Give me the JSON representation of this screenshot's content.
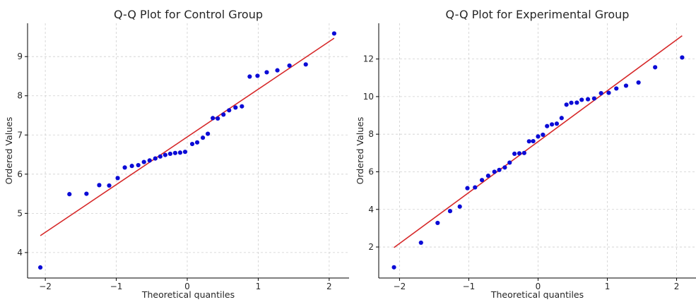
{
  "colors": {
    "points": "#0b0bd6",
    "fit_line": "#d62728",
    "grid": "#cfcfcf",
    "axes": "#000000"
  },
  "chart_data": [
    {
      "type": "scatter",
      "title": "Q-Q Plot for Control Group",
      "xlabel": "Theoretical quantiles",
      "ylabel": "Ordered Values",
      "xlim": [
        -2.25,
        2.28
      ],
      "ylim": [
        3.35,
        9.85
      ],
      "xticks": [
        -2,
        -1,
        0,
        1,
        2
      ],
      "yticks": [
        4,
        5,
        6,
        7,
        8,
        9
      ],
      "grid": true,
      "series": [
        {
          "kind": "points",
          "x": [
            -2.07,
            -1.66,
            -1.42,
            -1.24,
            -1.1,
            -0.98,
            -0.88,
            -0.78,
            -0.69,
            -0.61,
            -0.53,
            -0.45,
            -0.38,
            -0.31,
            -0.24,
            -0.17,
            -0.1,
            -0.03,
            0.07,
            0.14,
            0.22,
            0.29,
            0.36,
            0.43,
            0.51,
            0.59,
            0.68,
            0.77,
            0.88,
            0.99,
            1.12,
            1.27,
            1.44,
            1.67,
            2.07
          ],
          "y": [
            3.62,
            5.49,
            5.5,
            5.72,
            5.71,
            5.9,
            6.17,
            6.21,
            6.23,
            6.31,
            6.35,
            6.4,
            6.45,
            6.49,
            6.52,
            6.54,
            6.55,
            6.57,
            6.77,
            6.81,
            6.93,
            7.03,
            7.43,
            7.42,
            7.52,
            7.63,
            7.7,
            7.73,
            8.49,
            8.51,
            8.6,
            8.65,
            8.77,
            8.8,
            9.59
          ]
        },
        {
          "kind": "fit_line",
          "x": [
            -2.07,
            2.07
          ],
          "y": [
            4.43,
            9.47
          ]
        }
      ]
    },
    {
      "type": "scatter",
      "title": "Q-Q Plot for Experimental Group",
      "xlabel": "Theoretical quantiles",
      "ylabel": "Ordered Values",
      "xlim": [
        -2.3,
        2.28
      ],
      "ylim": [
        0.35,
        13.9
      ],
      "xticks": [
        -2,
        -1,
        0,
        1,
        2
      ],
      "yticks": [
        2,
        4,
        6,
        8,
        10,
        12
      ],
      "grid": true,
      "series": [
        {
          "kind": "points",
          "x": [
            -2.08,
            -1.69,
            -1.45,
            -1.27,
            -1.13,
            -1.02,
            -0.91,
            -0.81,
            -0.72,
            -0.63,
            -0.56,
            -0.48,
            -0.41,
            -0.34,
            -0.27,
            -0.2,
            -0.13,
            -0.07,
            0.0,
            0.07,
            0.13,
            0.2,
            0.27,
            0.34,
            0.41,
            0.48,
            0.56,
            0.63,
            0.72,
            0.81,
            0.91,
            1.02,
            1.13,
            1.27,
            1.45,
            1.69,
            2.08
          ],
          "y": [
            0.92,
            2.23,
            3.28,
            3.91,
            4.15,
            5.13,
            5.17,
            5.56,
            5.79,
            6.0,
            6.1,
            6.23,
            6.49,
            6.96,
            6.98,
            7.0,
            7.62,
            7.63,
            7.88,
            7.97,
            8.43,
            8.52,
            8.56,
            8.86,
            9.57,
            9.67,
            9.68,
            9.83,
            9.86,
            9.9,
            10.18,
            10.2,
            10.43,
            10.58,
            10.75,
            11.56,
            12.08
          ]
        },
        {
          "kind": "fit_line",
          "x": [
            -2.08,
            2.08
          ],
          "y": [
            1.97,
            13.24
          ]
        }
      ]
    }
  ]
}
